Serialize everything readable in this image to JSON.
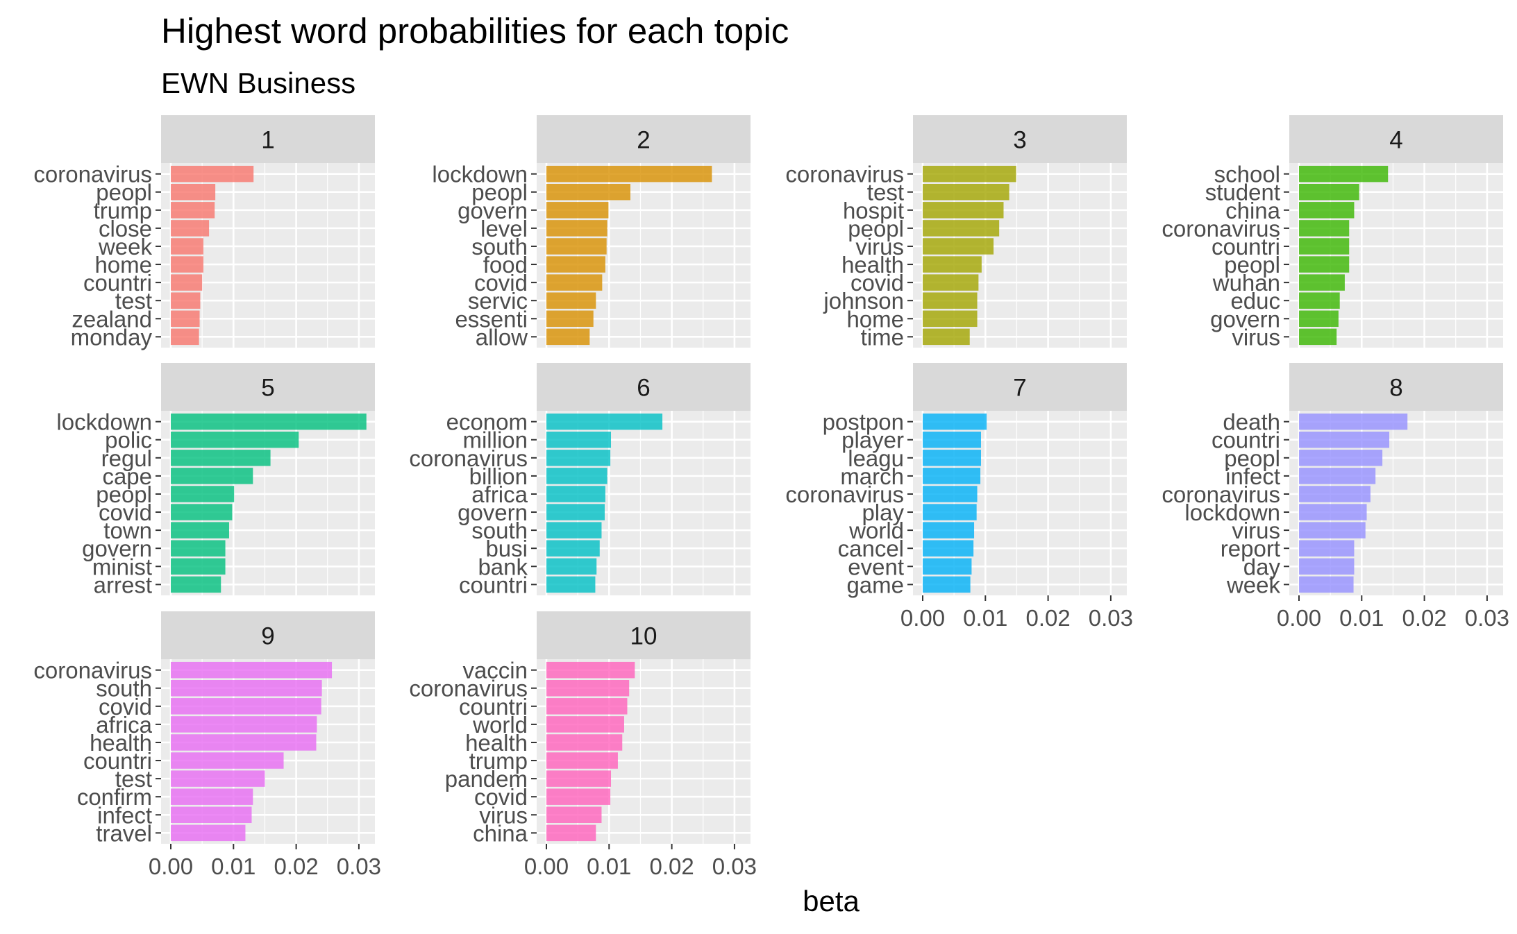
{
  "chart_data": {
    "type": "bar",
    "orientation": "horizontal",
    "title": "Highest word probabilities for each topic",
    "subtitle": "EWN Business",
    "xlabel": "beta",
    "ylabel": "",
    "xlim": [
      0,
      0.03
    ],
    "x_ticks": [
      "0.00",
      "0.01",
      "0.02",
      "0.03"
    ],
    "grid": true,
    "legend": "none",
    "layout": "facet_wrap ncol=4, free_y",
    "facets": [
      {
        "topic": "1",
        "color": "#F8766D",
        "terms": [
          "coronavirus",
          "peopl",
          "trump",
          "close",
          "week",
          "home",
          "countri",
          "test",
          "zealand",
          "monday"
        ],
        "values": [
          0.0132,
          0.0071,
          0.007,
          0.0061,
          0.0052,
          0.0052,
          0.005,
          0.0047,
          0.0046,
          0.0045
        ]
      },
      {
        "topic": "2",
        "color": "#D89000",
        "terms": [
          "lockdown",
          "peopl",
          "govern",
          "level",
          "south",
          "food",
          "covid",
          "servic",
          "essenti",
          "allow"
        ],
        "values": [
          0.0264,
          0.0134,
          0.0099,
          0.0097,
          0.0096,
          0.0094,
          0.0089,
          0.0079,
          0.0075,
          0.0069
        ]
      },
      {
        "topic": "3",
        "color": "#A3A500",
        "terms": [
          "coronavirus",
          "test",
          "hospit",
          "peopl",
          "virus",
          "health",
          "covid",
          "johnson",
          "home",
          "time"
        ],
        "values": [
          0.0149,
          0.0138,
          0.0129,
          0.0122,
          0.0113,
          0.0094,
          0.0089,
          0.0087,
          0.0087,
          0.0075
        ]
      },
      {
        "topic": "4",
        "color": "#39B600",
        "terms": [
          "school",
          "student",
          "china",
          "coronavirus",
          "countri",
          "peopl",
          "wuhan",
          "educ",
          "govern",
          "virus"
        ],
        "values": [
          0.0142,
          0.0096,
          0.0088,
          0.008,
          0.008,
          0.008,
          0.0073,
          0.0065,
          0.0063,
          0.006
        ]
      },
      {
        "topic": "5",
        "color": "#00BF7D",
        "terms": [
          "lockdown",
          "polic",
          "regul",
          "cape",
          "peopl",
          "covid",
          "town",
          "govern",
          "minist",
          "arrest"
        ],
        "values": [
          0.0312,
          0.0204,
          0.0159,
          0.0131,
          0.0101,
          0.0098,
          0.0093,
          0.0087,
          0.0087,
          0.008
        ]
      },
      {
        "topic": "6",
        "color": "#00BFC4",
        "terms": [
          "econom",
          "million",
          "coronavirus",
          "billion",
          "africa",
          "govern",
          "south",
          "busi",
          "bank",
          "countri"
        ],
        "values": [
          0.0185,
          0.0103,
          0.0102,
          0.0097,
          0.0094,
          0.0093,
          0.0088,
          0.0085,
          0.008,
          0.0078
        ]
      },
      {
        "topic": "7",
        "color": "#00B0F6",
        "terms": [
          "postpon",
          "player",
          "leagu",
          "march",
          "coronavirus",
          "play",
          "world",
          "cancel",
          "event",
          "game"
        ],
        "values": [
          0.0102,
          0.0093,
          0.0093,
          0.0092,
          0.0087,
          0.0086,
          0.0082,
          0.0081,
          0.0078,
          0.0076
        ]
      },
      {
        "topic": "8",
        "color": "#9590FF",
        "terms": [
          "death",
          "countri",
          "peopl",
          "infect",
          "coronavirus",
          "lockdown",
          "virus",
          "report",
          "day",
          "week"
        ],
        "values": [
          0.0173,
          0.0144,
          0.0133,
          0.0122,
          0.0114,
          0.0108,
          0.0106,
          0.0088,
          0.0088,
          0.0087
        ]
      },
      {
        "topic": "9",
        "color": "#E76BF3",
        "terms": [
          "coronavirus",
          "south",
          "covid",
          "africa",
          "health",
          "countri",
          "test",
          "confirm",
          "infect",
          "travel"
        ],
        "values": [
          0.0257,
          0.0241,
          0.024,
          0.0233,
          0.0232,
          0.018,
          0.015,
          0.0131,
          0.0129,
          0.0119
        ]
      },
      {
        "topic": "10",
        "color": "#FF62BC",
        "terms": [
          "vaccin",
          "coronavirus",
          "countri",
          "world",
          "health",
          "trump",
          "pandem",
          "covid",
          "virus",
          "china"
        ],
        "values": [
          0.0141,
          0.0132,
          0.0129,
          0.0124,
          0.0121,
          0.0114,
          0.0103,
          0.0102,
          0.0088,
          0.0079
        ]
      }
    ]
  }
}
